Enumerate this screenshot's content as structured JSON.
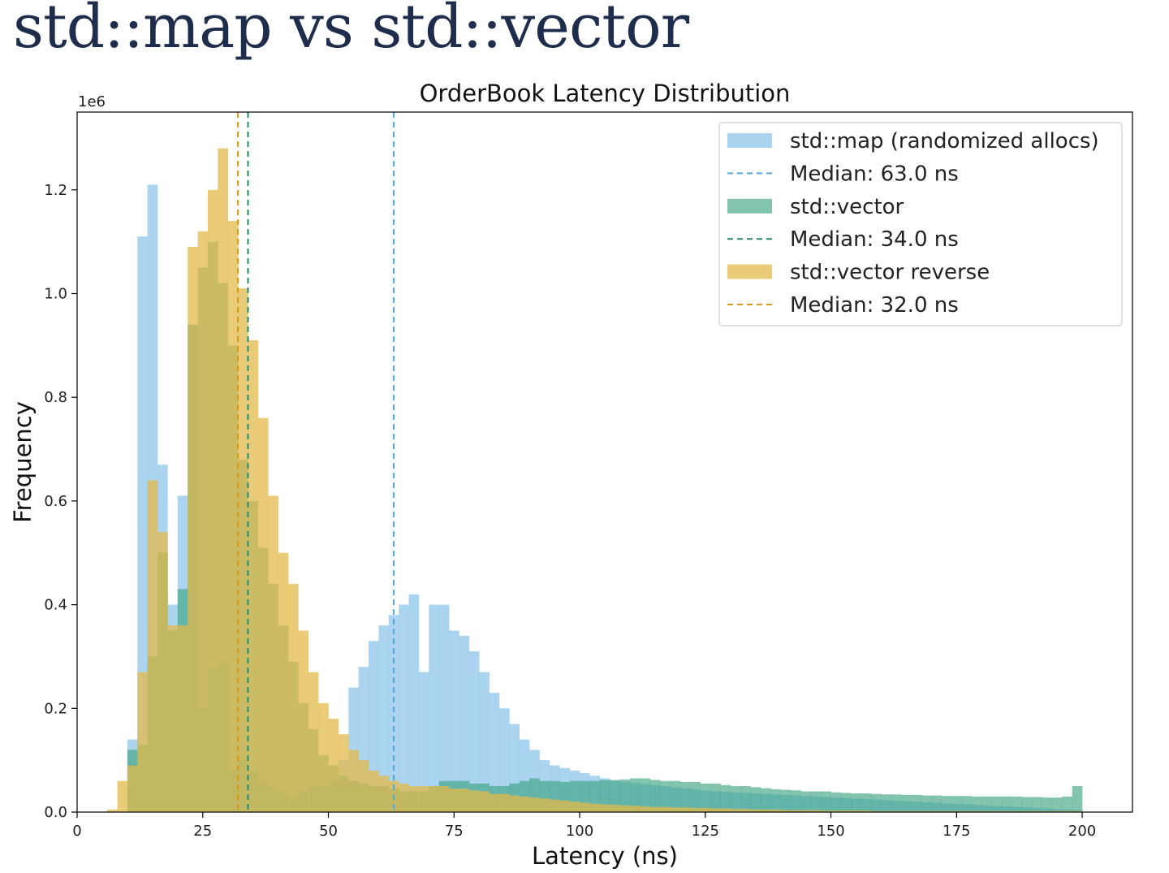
{
  "slide": {
    "title": "std::map vs std::vector"
  },
  "colors": {
    "map": "#8ec6ea",
    "vector": "#3fa582",
    "reverse": "#e3b94b",
    "map_line": "#56a8d6",
    "vector_line": "#2a8a68",
    "reverse_line": "#d79a18"
  },
  "chart_data": {
    "type": "bar",
    "title": "OrderBook Latency Distribution",
    "xlabel": "Latency (ns)",
    "ylabel": "Frequency",
    "y_multiplier": "1e6",
    "xlim": [
      0,
      210
    ],
    "ylim": [
      0,
      1.35
    ],
    "xticks": [
      0,
      25,
      50,
      75,
      100,
      125,
      150,
      175,
      200
    ],
    "yticks": [
      0.0,
      0.2,
      0.4,
      0.6,
      0.8,
      1.0,
      1.2
    ],
    "ytick_labels": [
      "0.0",
      "0.2",
      "0.4",
      "0.6",
      "0.8",
      "1.0",
      "1.2"
    ],
    "bin_start": 6,
    "bin_width": 2,
    "legend_position": "top-right",
    "series": [
      {
        "name": "std::map (randomized allocs)",
        "key": "map",
        "median": 63.0,
        "median_label": "Median: 63.0 ns",
        "values": [
          0,
          0,
          0.14,
          1.11,
          1.21,
          0.67,
          0.4,
          0.61,
          0.94,
          0.2,
          0.28,
          0.29,
          0.08,
          0.1,
          0.08,
          0.06,
          0.05,
          0.04,
          0.03,
          0.04,
          0.05,
          0.05,
          0.06,
          0.1,
          0.24,
          0.28,
          0.33,
          0.36,
          0.38,
          0.4,
          0.42,
          0.27,
          0.4,
          0.4,
          0.35,
          0.34,
          0.31,
          0.27,
          0.23,
          0.2,
          0.17,
          0.14,
          0.12,
          0.1,
          0.09,
          0.085,
          0.08,
          0.075,
          0.07,
          0.065,
          0.06,
          0.058,
          0.056,
          0.054,
          0.052,
          0.05,
          0.048,
          0.046,
          0.044,
          0.042,
          0.04,
          0.039,
          0.038,
          0.037,
          0.036,
          0.035,
          0.034,
          0.033,
          0.032,
          0.031,
          0.03,
          0.029,
          0.028,
          0.027,
          0.026,
          0.025,
          0.024,
          0.023,
          0.022,
          0.021,
          0.02,
          0.019,
          0.018,
          0.017,
          0.016,
          0.015,
          0.014,
          0.013,
          0.012,
          0.011,
          0.01,
          0.009,
          0.008,
          0.007,
          0.006,
          0.005,
          0.004
        ]
      },
      {
        "name": "std::vector",
        "key": "vector",
        "median": 34.0,
        "median_label": "Median: 34.0 ns",
        "values": [
          0,
          0,
          0.12,
          0.13,
          0.3,
          0.5,
          0.35,
          0.43,
          0.94,
          1.05,
          1.1,
          1.02,
          0.9,
          0.68,
          0.6,
          0.51,
          0.44,
          0.36,
          0.29,
          0.21,
          0.16,
          0.11,
          0.09,
          0.07,
          0.06,
          0.055,
          0.05,
          0.05,
          0.045,
          0.04,
          0.04,
          0.04,
          0.05,
          0.06,
          0.06,
          0.06,
          0.055,
          0.055,
          0.05,
          0.05,
          0.055,
          0.06,
          0.065,
          0.06,
          0.06,
          0.058,
          0.06,
          0.06,
          0.06,
          0.062,
          0.062,
          0.063,
          0.065,
          0.065,
          0.062,
          0.06,
          0.06,
          0.058,
          0.058,
          0.055,
          0.055,
          0.052,
          0.05,
          0.05,
          0.048,
          0.046,
          0.044,
          0.043,
          0.042,
          0.04,
          0.04,
          0.04,
          0.038,
          0.037,
          0.036,
          0.036,
          0.035,
          0.034,
          0.034,
          0.033,
          0.033,
          0.032,
          0.032,
          0.031,
          0.031,
          0.031,
          0.03,
          0.03,
          0.03,
          0.03,
          0.03,
          0.029,
          0.029,
          0.028,
          0.028,
          0.03,
          0.05
        ]
      },
      {
        "name": "std::vector reverse",
        "key": "reverse",
        "median": 32.0,
        "median_label": "Median: 32.0 ns",
        "values": [
          0.005,
          0.06,
          0.09,
          0.27,
          0.64,
          0.54,
          0.36,
          0.36,
          1.09,
          1.12,
          1.2,
          1.28,
          1.14,
          1.01,
          0.91,
          0.76,
          0.61,
          0.5,
          0.44,
          0.35,
          0.27,
          0.21,
          0.18,
          0.15,
          0.12,
          0.1,
          0.08,
          0.07,
          0.06,
          0.055,
          0.05,
          0.05,
          0.05,
          0.05,
          0.045,
          0.045,
          0.042,
          0.04,
          0.035,
          0.035,
          0.032,
          0.03,
          0.028,
          0.026,
          0.024,
          0.022,
          0.02,
          0.018,
          0.016,
          0.015,
          0.014,
          0.013,
          0.012,
          0.011,
          0.01,
          0.01,
          0.009,
          0.009,
          0.008,
          0.008,
          0.007,
          0.007,
          0.006,
          0.006,
          0.005,
          0.005,
          0.005,
          0.004,
          0.004,
          0.004,
          0.004,
          0.003,
          0.003,
          0.003,
          0.003,
          0.003,
          0.002,
          0.002,
          0.002,
          0.002,
          0.002,
          0.002,
          0.002,
          0.002,
          0.002,
          0.002,
          0.002,
          0.002,
          0.002,
          0.002,
          0.002,
          0.002,
          0.002,
          0.002,
          0.002,
          0.002,
          0.002
        ]
      }
    ]
  }
}
